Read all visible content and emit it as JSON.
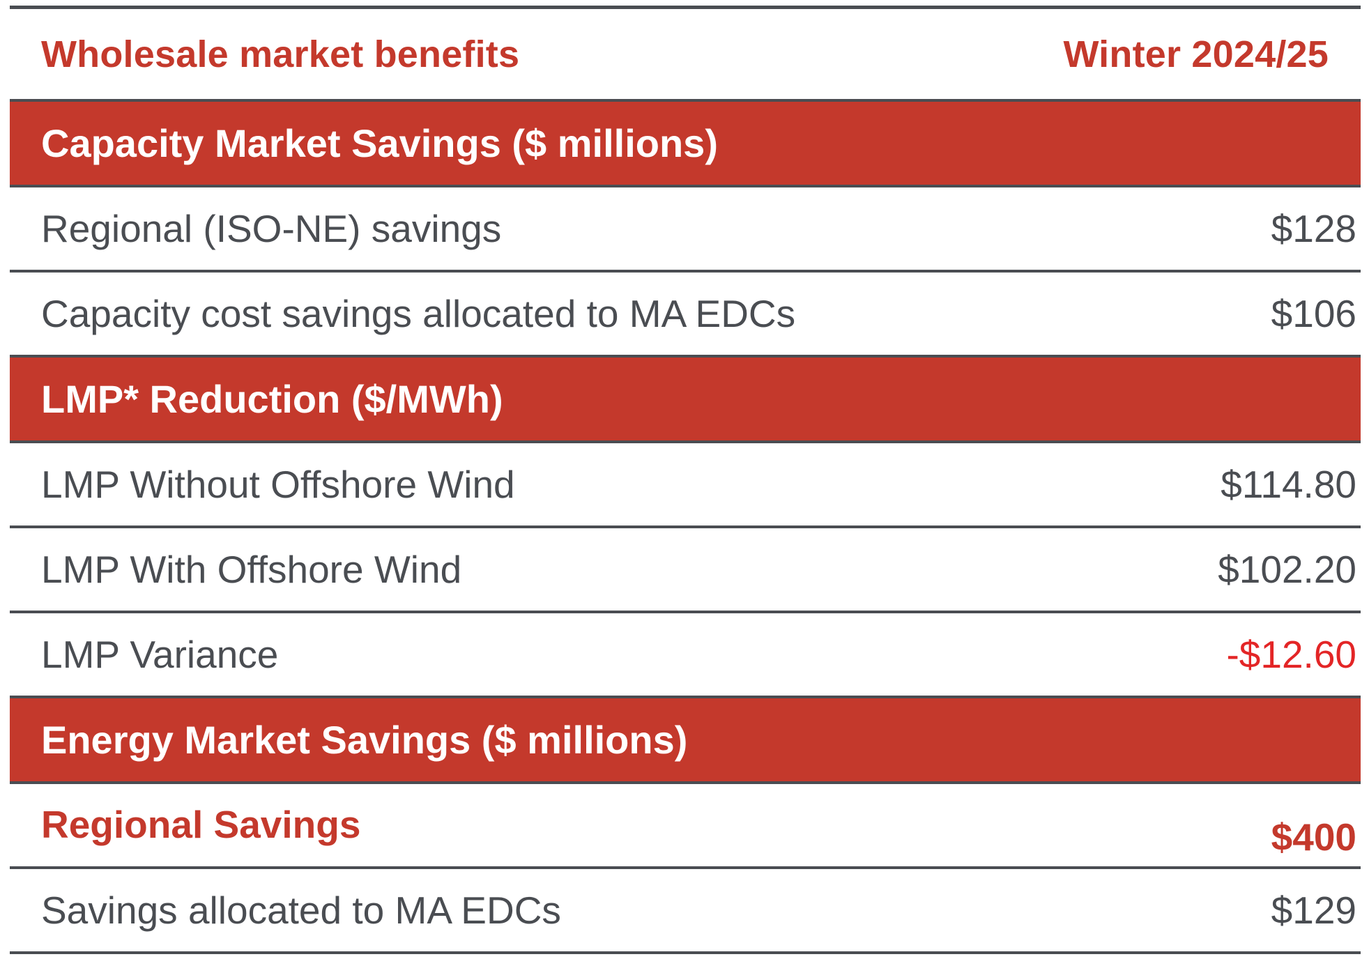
{
  "header": {
    "title": "Wholesale market benefits",
    "period": "Winter 2024/25"
  },
  "sections": [
    {
      "title": "Capacity Market Savings ($ millions)",
      "rows": [
        {
          "label": "Regional (ISO-NE) savings",
          "value": "$128"
        },
        {
          "label": "Capacity cost savings allocated to MA EDCs",
          "value": "$106"
        }
      ]
    },
    {
      "title": "LMP* Reduction ($/MWh)",
      "rows": [
        {
          "label": "LMP Without Offshore Wind",
          "value": "$114.80"
        },
        {
          "label": "LMP With Offshore Wind",
          "value": "$102.20"
        },
        {
          "label": "LMP Variance",
          "value": "-$12.60"
        }
      ]
    },
    {
      "title": "Energy Market Savings ($ millions)",
      "rows": [
        {
          "label": "Regional Savings",
          "value": "$400"
        },
        {
          "label": "Savings allocated to MA EDCs",
          "value": "$129"
        }
      ]
    }
  ],
  "colors": {
    "accent": "#c4392c",
    "text": "#4a4d52",
    "negative": "#e32526"
  }
}
